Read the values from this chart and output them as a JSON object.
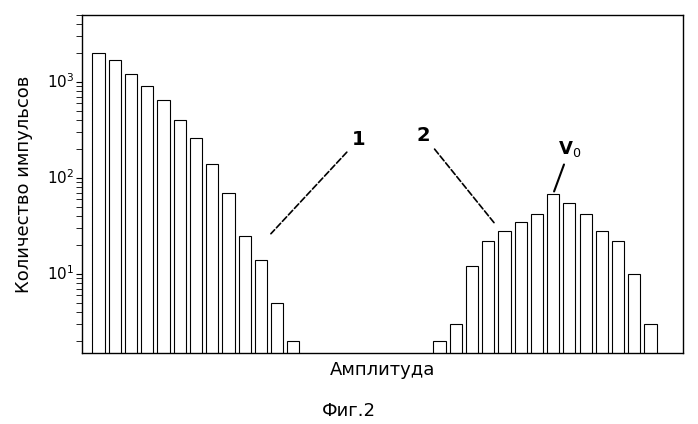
{
  "title": "Фиг.2",
  "ylabel": "Количество импульсов",
  "xlabel": "Амплитуда",
  "group1_x": [
    1,
    2,
    3,
    4,
    5,
    6,
    7,
    8,
    9,
    10,
    11,
    12,
    13
  ],
  "group1_values": [
    2000,
    1700,
    1200,
    900,
    650,
    400,
    260,
    140,
    70,
    25,
    14,
    5,
    2
  ],
  "group2_x": [
    22,
    23,
    24,
    25,
    26,
    27,
    28,
    29,
    30,
    31,
    32,
    33,
    34,
    35
  ],
  "group2_values": [
    2,
    3,
    12,
    22,
    28,
    35,
    42,
    68,
    55,
    42,
    28,
    22,
    10,
    3
  ],
  "v0_bar_x": 29,
  "bar_width": 0.75,
  "bar_facecolor": "white",
  "bar_edgecolor": "black",
  "annotation1_label": "1",
  "annotation2_label": "2",
  "v0_label": "V$_0$",
  "background_color": "white",
  "plot_bg_color": "white",
  "tick_fontsize": 11,
  "label_fontsize": 13,
  "title_fontsize": 13,
  "xlim": [
    0,
    37
  ],
  "ylim_low": 1.5,
  "ylim_high": 5000
}
